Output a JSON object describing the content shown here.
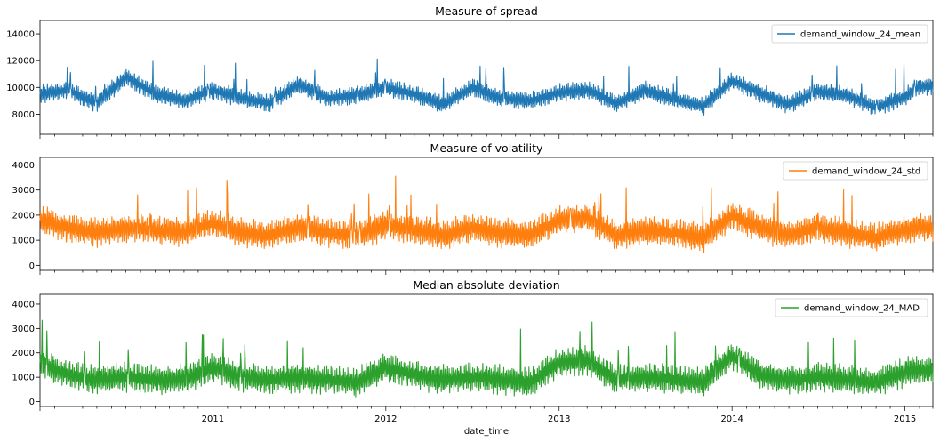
{
  "chart_data": [
    {
      "type": "line",
      "title": "Measure of spread",
      "ylim": [
        6500,
        15000
      ],
      "yticks": [
        8000,
        10000,
        12000,
        14000
      ],
      "legend": "top-right",
      "grid": false,
      "series": [
        {
          "name": "demand_window_24_mean",
          "color": "#1f77b4",
          "x": [
            "2010-01",
            "2010-03",
            "2010-05",
            "2010-07",
            "2010-09",
            "2010-11",
            "2011-01",
            "2011-03",
            "2011-05",
            "2011-07",
            "2011-09",
            "2011-11",
            "2012-01",
            "2012-03",
            "2012-05",
            "2012-07",
            "2012-09",
            "2012-11",
            "2013-01",
            "2013-03",
            "2013-05",
            "2013-07",
            "2013-09",
            "2013-11",
            "2014-01",
            "2014-03",
            "2014-05",
            "2014-07",
            "2014-09",
            "2014-11",
            "2015-01",
            "2015-02"
          ],
          "values": [
            9500,
            9800,
            8800,
            10800,
            9500,
            9000,
            9800,
            9200,
            8800,
            10200,
            9200,
            9400,
            10000,
            9500,
            8700,
            10000,
            9200,
            9000,
            9600,
            9800,
            8800,
            9800,
            9100,
            8600,
            10500,
            9600,
            8700,
            9700,
            9400,
            8500,
            9300,
            10100
          ]
        }
      ]
    },
    {
      "type": "line",
      "title": "Measure of volatility",
      "ylim": [
        -200,
        4300
      ],
      "yticks": [
        0,
        1000,
        2000,
        3000,
        4000
      ],
      "legend": "top-right",
      "grid": false,
      "series": [
        {
          "name": "demand_window_24_std",
          "color": "#ff7f0e",
          "x": [
            "2010-01",
            "2010-03",
            "2010-05",
            "2010-07",
            "2010-09",
            "2010-11",
            "2011-01",
            "2011-03",
            "2011-05",
            "2011-07",
            "2011-09",
            "2011-11",
            "2012-01",
            "2012-03",
            "2012-05",
            "2012-07",
            "2012-09",
            "2012-11",
            "2013-01",
            "2013-03",
            "2013-05",
            "2013-07",
            "2013-09",
            "2013-11",
            "2014-01",
            "2014-03",
            "2014-05",
            "2014-07",
            "2014-09",
            "2014-11",
            "2015-01",
            "2015-02"
          ],
          "values": [
            1800,
            1500,
            1300,
            1500,
            1400,
            1300,
            1700,
            1300,
            1200,
            1500,
            1300,
            1200,
            1600,
            1400,
            1200,
            1500,
            1300,
            1200,
            1800,
            1900,
            1200,
            1400,
            1300,
            1100,
            2000,
            1500,
            1200,
            1500,
            1300,
            1100,
            1400,
            1500
          ]
        }
      ]
    },
    {
      "type": "line",
      "title": "Median absolute deviation",
      "xlabel": "date_time",
      "ylim": [
        -200,
        4400
      ],
      "yticks": [
        0,
        1000,
        2000,
        3000,
        4000
      ],
      "xticks": [
        "2011",
        "2012",
        "2013",
        "2014",
        "2015"
      ],
      "legend": "top-right",
      "grid": false,
      "series": [
        {
          "name": "demand_window_24_MAD",
          "color": "#2ca02c",
          "x": [
            "2010-01",
            "2010-03",
            "2010-05",
            "2010-07",
            "2010-09",
            "2010-11",
            "2011-01",
            "2011-03",
            "2011-05",
            "2011-07",
            "2011-09",
            "2011-11",
            "2012-01",
            "2012-03",
            "2012-05",
            "2012-07",
            "2012-09",
            "2012-11",
            "2013-01",
            "2013-03",
            "2013-05",
            "2013-07",
            "2013-09",
            "2013-11",
            "2014-01",
            "2014-03",
            "2014-05",
            "2014-07",
            "2014-09",
            "2014-11",
            "2015-01",
            "2015-02"
          ],
          "values": [
            1600,
            1100,
            900,
            1000,
            900,
            900,
            1400,
            1000,
            900,
            1000,
            900,
            800,
            1400,
            1100,
            900,
            1000,
            900,
            800,
            1600,
            1700,
            900,
            1000,
            900,
            800,
            1900,
            1100,
            900,
            1000,
            900,
            800,
            1200,
            1300
          ]
        }
      ]
    }
  ]
}
